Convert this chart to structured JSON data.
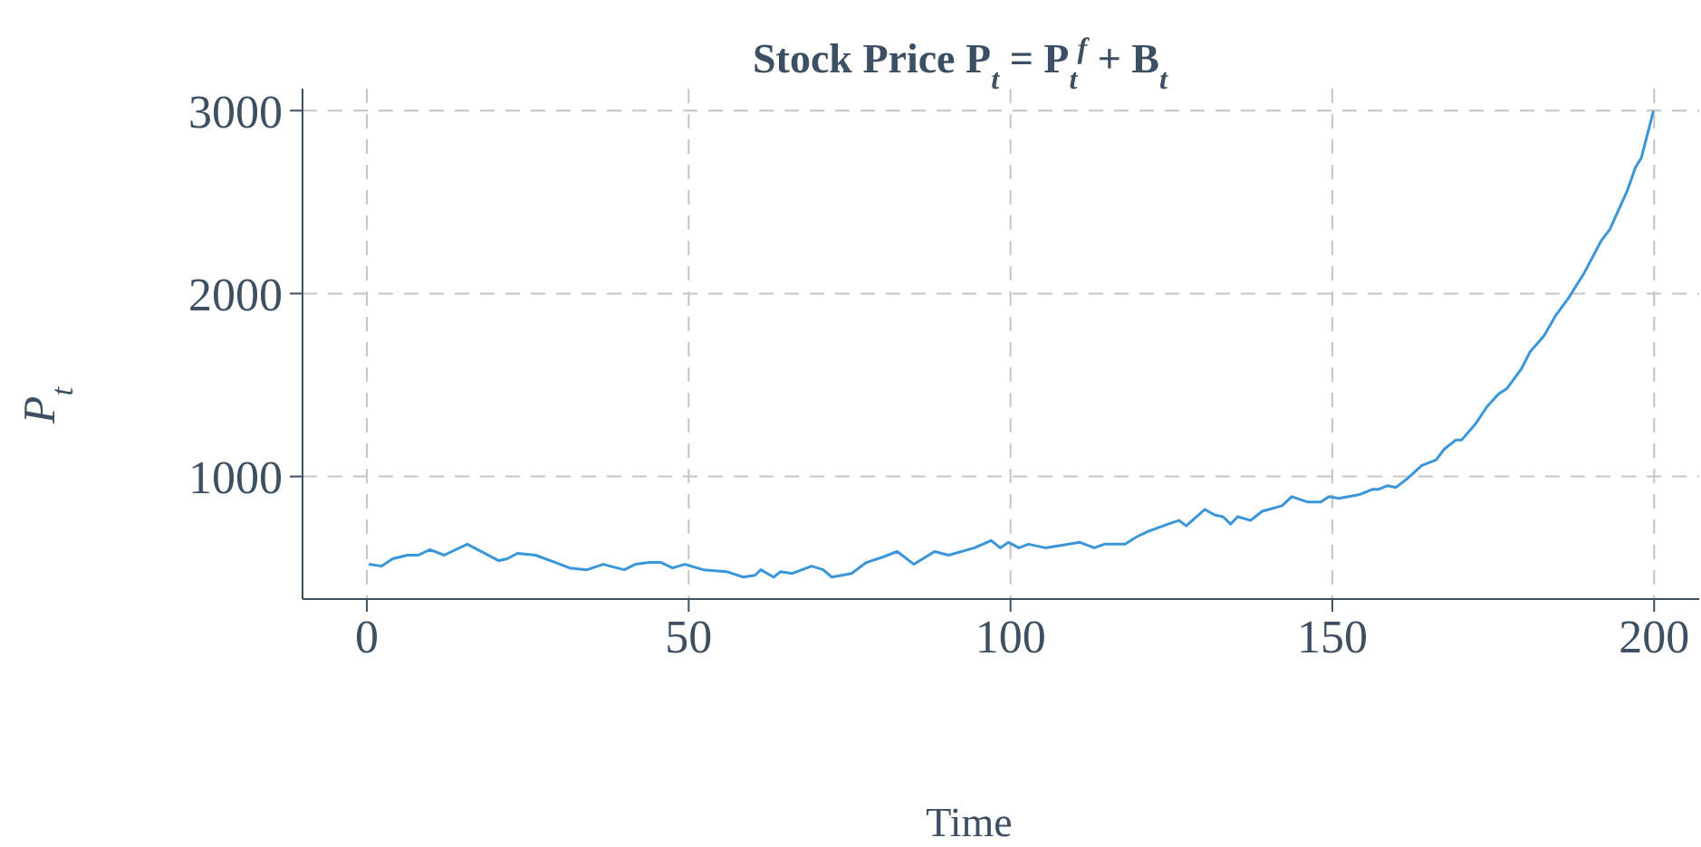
{
  "chart_data": {
    "type": "line",
    "title": "Stock Price P$_{t}$ = P$_{t}$$^{f}$ + B$_{t}$",
    "xlabel": "Time",
    "ylabel": "P$_{t}$",
    "x": [
      0.3,
      2.3,
      4,
      6.3,
      8,
      9.8,
      12,
      15.6,
      20.5,
      21.8,
      23.4,
      26.2,
      29.3,
      31.5,
      34.2,
      36.7,
      40,
      41.7,
      43.9,
      45.7,
      47.5,
      49.4,
      52.3,
      55.9,
      58.5,
      60.3,
      61.2,
      63.2,
      64.3,
      66.1,
      69.1,
      70.9,
      72.2,
      75.3,
      77.6,
      80.2,
      82.4,
      85,
      88.2,
      90.4,
      94.4,
      97,
      98.4,
      99.7,
      101.3,
      102.8,
      105.4,
      110.8,
      113,
      114.6,
      117.8,
      119.6,
      121.4,
      124.5,
      126.2,
      127.3,
      130.2,
      131.7,
      133,
      134.2,
      135.3,
      137.3,
      139.1,
      142.2,
      143.7,
      146.2,
      148.2,
      149.5,
      151,
      154.1,
      156.3,
      157.2,
      158.6,
      159.9,
      161.7,
      163.9,
      166.1,
      167.4,
      169.2,
      170.1,
      172.3,
      174,
      175.8,
      177.1,
      179.4,
      180.7,
      182.9,
      184.7,
      186.6,
      188.2,
      189.1,
      191.8,
      193.1,
      195.8,
      197.1,
      198,
      199.9
    ],
    "series": [
      {
        "color": "#3a96d8",
        "values": [
          520,
          510,
          550,
          570,
          570,
          600,
          570,
          630,
          540,
          550,
          580,
          570,
          530,
          500,
          490,
          520,
          490,
          520,
          530,
          530,
          500,
          520,
          490,
          480,
          450,
          460,
          490,
          450,
          480,
          470,
          510,
          490,
          450,
          470,
          530,
          560,
          590,
          520,
          590,
          570,
          610,
          650,
          610,
          640,
          610,
          630,
          610,
          640,
          610,
          630,
          630,
          670,
          700,
          740,
          760,
          730,
          820,
          790,
          780,
          740,
          780,
          760,
          810,
          840,
          890,
          860,
          860,
          890,
          880,
          900,
          930,
          930,
          950,
          940,
          990,
          1060,
          1090,
          1150,
          1200,
          1200,
          1290,
          1380,
          1450,
          1480,
          1590,
          1680,
          1770,
          1880,
          1970,
          2060,
          2110,
          2290,
          2350,
          2560,
          2690,
          2740,
          3000
        ]
      }
    ],
    "xlim": [
      -10,
      207
    ],
    "ylim": [
      330,
      3120
    ],
    "xticks": [
      0,
      50,
      100,
      150,
      200
    ],
    "yticks": [
      1000,
      2000,
      3000
    ],
    "grid": true,
    "line_style": "solid",
    "marker": "none"
  }
}
